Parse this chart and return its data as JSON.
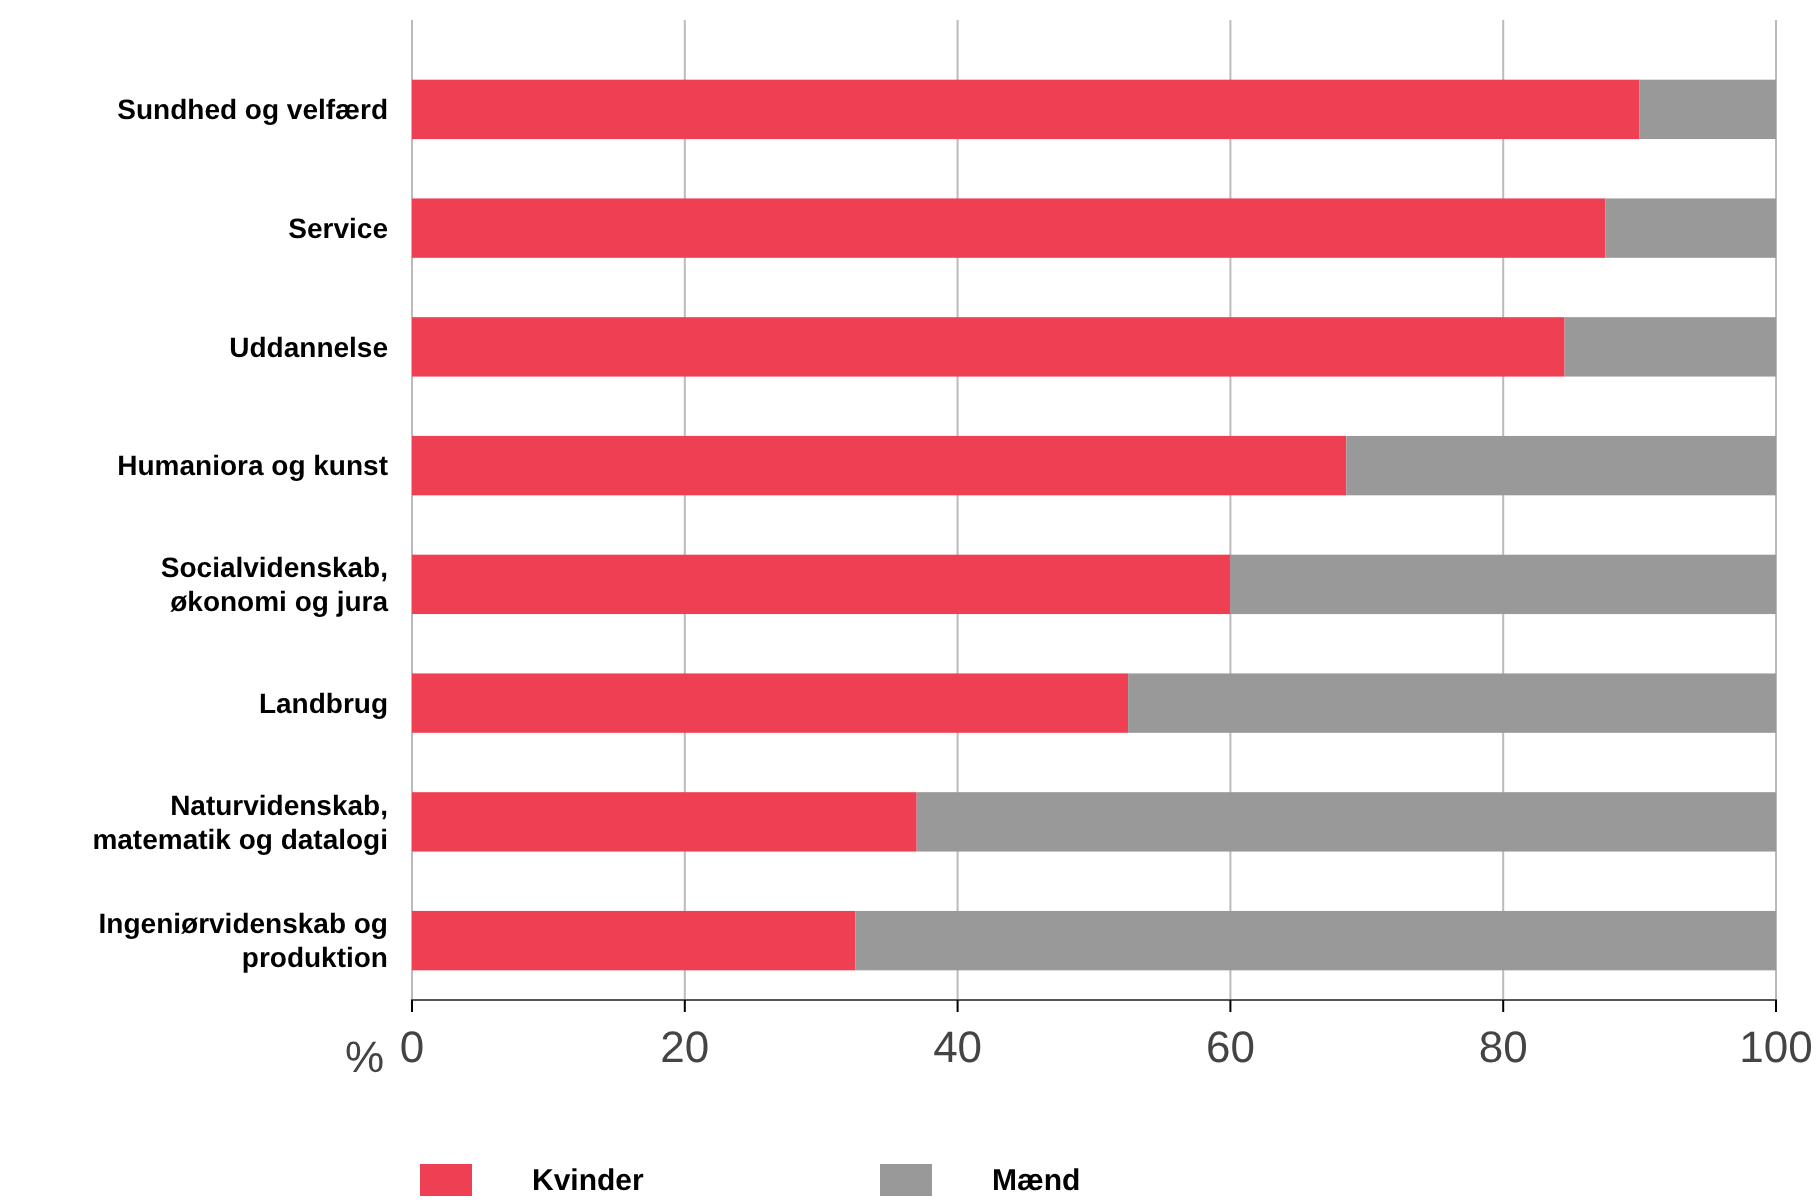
{
  "chart_data": {
    "type": "bar",
    "orientation": "horizontal",
    "stacked": true,
    "categories": [
      "Sundhed og velfærd",
      "Service",
      "Uddannelse",
      "Humaniora og kunst",
      "Socialvidenskab, økonomi og jura",
      "Landbrug",
      "Naturvidenskab, matematik og datalogi",
      "Ingeniørvidenskab og produktion"
    ],
    "series": [
      {
        "name": "Kvinder",
        "color": "#ef3f52",
        "values": [
          90,
          87.5,
          84.5,
          68.5,
          60,
          52.5,
          37,
          32.5
        ]
      },
      {
        "name": "Mænd",
        "color": "#999999",
        "values": [
          10,
          12.5,
          15.5,
          31.5,
          40,
          47.5,
          63,
          67.5
        ]
      }
    ],
    "xlabel": "%",
    "xlim": [
      0,
      100
    ],
    "xticks": [
      0,
      20,
      40,
      60,
      80,
      100
    ],
    "grid": "x",
    "legend": "bottom left"
  }
}
